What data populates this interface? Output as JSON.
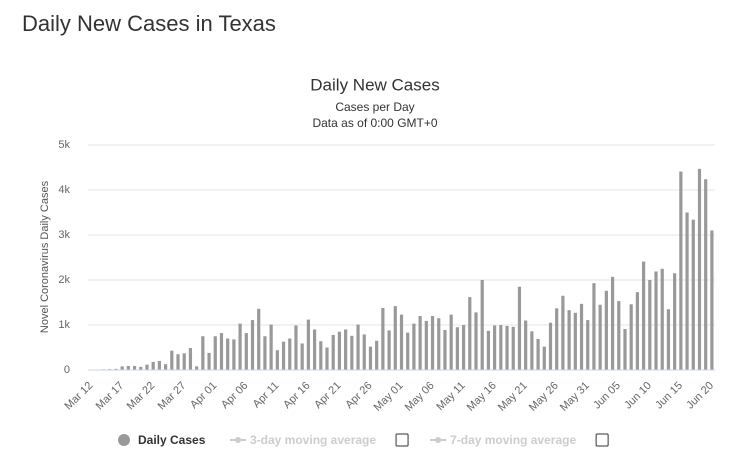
{
  "page_title": "Daily New Cases in Texas",
  "chart_data": {
    "type": "bar",
    "title": "Daily New Cases",
    "subtitle": [
      "Cases per Day",
      "Data as of 0:00 GMT+0"
    ],
    "y_label": "Novel Coronavirus Daily Cases",
    "categories": [
      "Mar 12",
      null,
      null,
      null,
      null,
      "Mar 17",
      null,
      null,
      null,
      null,
      "Mar 22",
      null,
      null,
      null,
      null,
      "Mar 27",
      null,
      null,
      null,
      null,
      "Apr 01",
      null,
      null,
      null,
      null,
      "Apr 06",
      null,
      null,
      null,
      null,
      "Apr 11",
      null,
      null,
      null,
      null,
      "Apr 16",
      null,
      null,
      null,
      null,
      "Apr 21",
      null,
      null,
      null,
      null,
      "Apr 26",
      null,
      null,
      null,
      null,
      "May 01",
      null,
      null,
      null,
      null,
      "May 06",
      null,
      null,
      null,
      null,
      "May 11",
      null,
      null,
      null,
      null,
      "May 16",
      null,
      null,
      null,
      null,
      "May 21",
      null,
      null,
      null,
      null,
      "May 26",
      null,
      null,
      null,
      null,
      "May 31",
      null,
      null,
      null,
      null,
      "Jun 05",
      null,
      null,
      null,
      null,
      "Jun 10",
      null,
      null,
      null,
      null,
      "Jun 15",
      null,
      null,
      null,
      null,
      "Jun 20"
    ],
    "series": [
      {
        "name": "Daily Cases",
        "color": "#999999",
        "values": [
          5,
          10,
          15,
          20,
          25,
          80,
          90,
          90,
          70,
          120,
          180,
          200,
          130,
          430,
          350,
          370,
          490,
          80,
          750,
          380,
          750,
          820,
          700,
          680,
          1030,
          820,
          1110,
          1360,
          750,
          1010,
          440,
          630,
          700,
          990,
          590,
          1120,
          900,
          640,
          500,
          780,
          850,
          900,
          760,
          1010,
          790,
          520,
          650,
          1380,
          880,
          1420,
          1230,
          830,
          1030,
          1200,
          1090,
          1200,
          1150,
          890,
          1230,
          950,
          1000,
          1620,
          1280,
          2000,
          870,
          990,
          1000,
          980,
          960,
          1850,
          1100,
          860,
          690,
          520,
          1050,
          1370,
          1650,
          1330,
          1270,
          1470,
          1110,
          1930,
          1450,
          1760,
          2070,
          1530,
          910,
          1460,
          1730,
          2410,
          2000,
          2190,
          2250,
          1350,
          2150,
          4410,
          3500,
          3340,
          4470,
          4240,
          3100
        ]
      }
    ],
    "legend_off": [
      "3-day moving average",
      "7-day moving average"
    ],
    "ylim": [
      0,
      5000
    ],
    "yticks": [
      0,
      {
        "value": 1000,
        "label": "1k"
      },
      {
        "value": 2000,
        "label": "2k"
      },
      {
        "value": 3000,
        "label": "3k"
      },
      {
        "value": 4000,
        "label": "4k"
      },
      {
        "value": 5000,
        "label": "5k"
      }
    ],
    "grid": true
  }
}
